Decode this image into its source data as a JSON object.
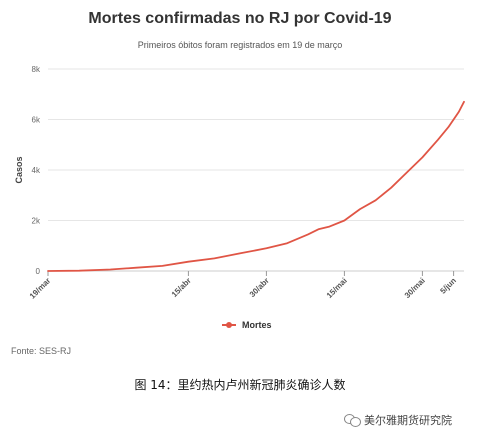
{
  "chart_data": {
    "type": "line",
    "title": "Mortes confirmadas no RJ por Covid-19",
    "subtitle": "Primeiros óbitos foram registrados em 19 de março",
    "ylabel": "Casos",
    "xlabel": "",
    "ylim": [
      0,
      8000
    ],
    "yticks": [
      0,
      2000,
      4000,
      6000,
      8000
    ],
    "ytick_labels": [
      "0",
      "2k",
      "4k",
      "6k",
      "8k"
    ],
    "xlim": [
      "2020-03-19",
      "2020-06-07"
    ],
    "xticks": [
      "2020-03-19",
      "2020-04-15",
      "2020-04-30",
      "2020-05-15",
      "2020-05-30",
      "2020-06-05"
    ],
    "xtick_labels": [
      "19/mar",
      "15/abr",
      "30/abr",
      "15/mai",
      "30/mai",
      "5/jun"
    ],
    "grid": true,
    "legend_position": "bottom-center",
    "color": "#e05545",
    "series": [
      {
        "name": "Mortes",
        "x": [
          "2020-03-19",
          "2020-03-25",
          "2020-03-31",
          "2020-04-05",
          "2020-04-10",
          "2020-04-15",
          "2020-04-20",
          "2020-04-25",
          "2020-04-30",
          "2020-05-04",
          "2020-05-08",
          "2020-05-10",
          "2020-05-12",
          "2020-05-15",
          "2020-05-18",
          "2020-05-21",
          "2020-05-24",
          "2020-05-27",
          "2020-05-30",
          "2020-06-02",
          "2020-06-04",
          "2020-06-06",
          "2020-06-07"
        ],
        "values": [
          0,
          10,
          60,
          130,
          200,
          370,
          500,
          700,
          900,
          1100,
          1450,
          1650,
          1750,
          2000,
          2450,
          2800,
          3300,
          3900,
          4500,
          5200,
          5700,
          6300,
          6700
        ]
      }
    ]
  },
  "legend": {
    "label": "Mortes"
  },
  "source": "Fonte: SES-RJ",
  "caption": "图 14：里约热内卢州新冠肺炎确诊人数",
  "watermark": {
    "text": "美尔雅期货研究院"
  }
}
